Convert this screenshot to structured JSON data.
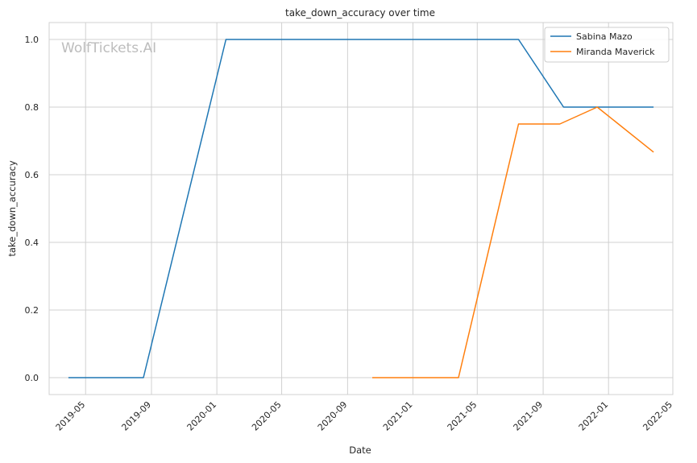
{
  "chart_data": {
    "type": "line",
    "title": "take_down_accuracy over time",
    "xlabel": "Date",
    "ylabel": "take_down_accuracy",
    "watermark": "WolfTickets.AI",
    "x_ticks": [
      "2019-05",
      "2019-09",
      "2020-01",
      "2020-05",
      "2020-09",
      "2021-01",
      "2021-05",
      "2021-09",
      "2022-01",
      "2022-05"
    ],
    "y_ticks": [
      "0.0",
      "0.2",
      "0.4",
      "0.6",
      "0.8",
      "1.0"
    ],
    "xlim": [
      "2019-02-22",
      "2022-05-01"
    ],
    "ylim": [
      -0.05,
      1.05
    ],
    "grid": true,
    "legend_position": "top-right",
    "series": [
      {
        "name": "Sabina Mazo",
        "color": "#1f77b4",
        "x": [
          "2019-03-30",
          "2019-08-17",
          "2020-01-18",
          "2021-07-17",
          "2021-10-09",
          "2022-03-26"
        ],
        "y": [
          0.0,
          0.0,
          1.0,
          1.0,
          0.8,
          0.8
        ]
      },
      {
        "name": "Miranda Maverick",
        "color": "#ff7f0e",
        "x": [
          "2020-10-17",
          "2021-03-27",
          "2021-07-17",
          "2021-10-02",
          "2021-12-11",
          "2022-03-26"
        ],
        "y": [
          0.0,
          0.0,
          0.75,
          0.75,
          0.8,
          0.667
        ]
      }
    ]
  }
}
